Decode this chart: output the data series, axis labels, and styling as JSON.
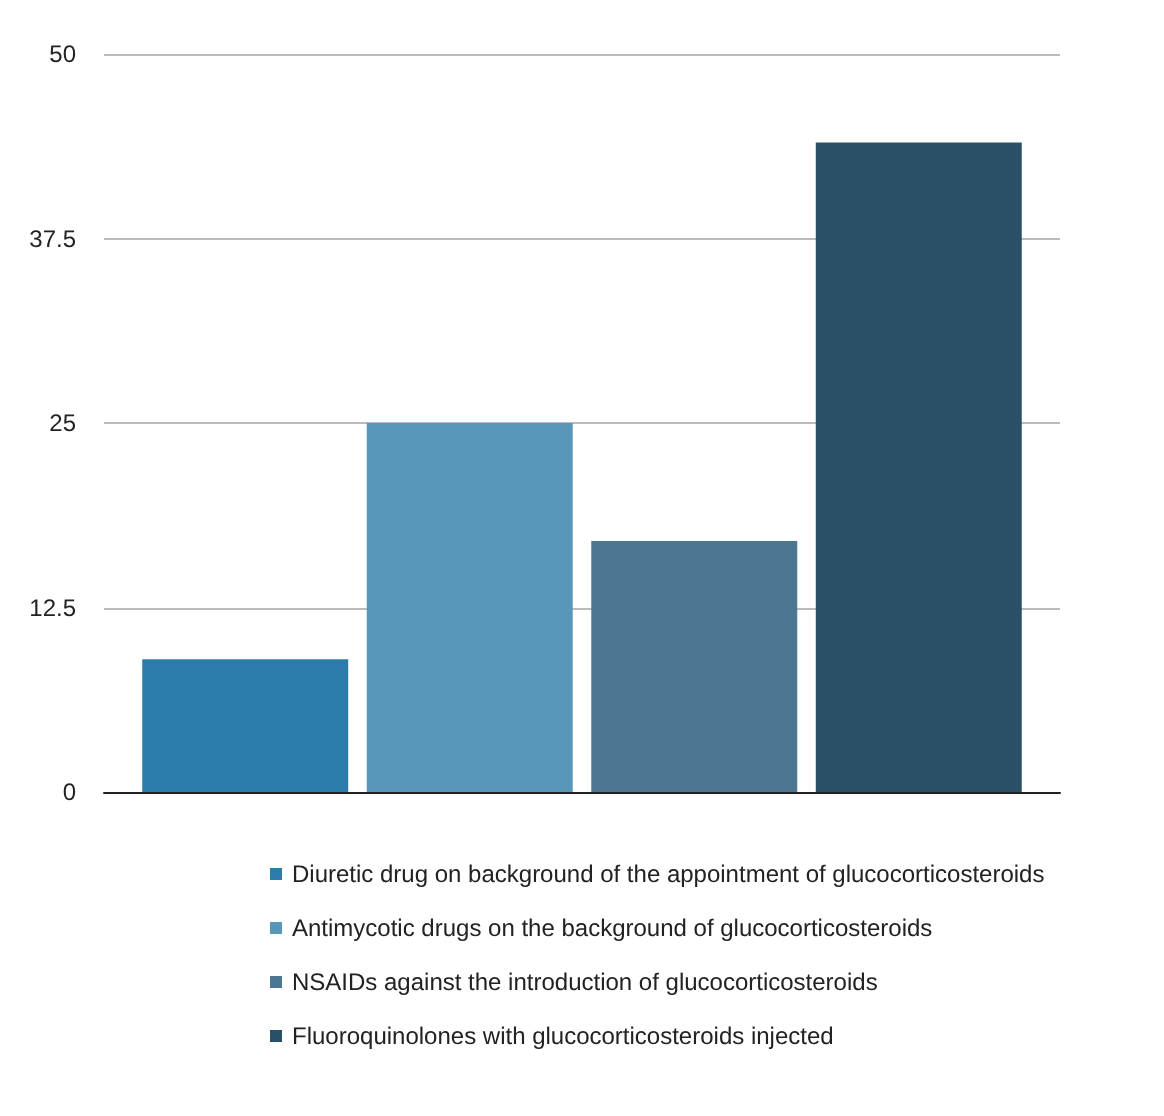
{
  "chart_data": {
    "type": "bar",
    "categories": [
      null
    ],
    "series": [
      {
        "name": "Diuretic drug on background of the appointment of glucocorticosteroids",
        "color": "#2b7bab",
        "values": [
          9
        ]
      },
      {
        "name": "Antimycotic drugs on the background of glucocorticosteroids",
        "color": "#5797ba",
        "values": [
          25
        ]
      },
      {
        "name": "NSAIDs against the introduction of glucocorticosteroids",
        "color": "#4b7792",
        "values": [
          17
        ]
      },
      {
        "name": "Fluoroquinolones with glucocorticosteroids injected",
        "color": "#2a5068",
        "values": [
          44
        ]
      }
    ],
    "ylim": [
      0,
      50
    ],
    "yticks": [
      0,
      12.5,
      25,
      37.5,
      50
    ],
    "grid": "y",
    "legend": "bottom"
  }
}
